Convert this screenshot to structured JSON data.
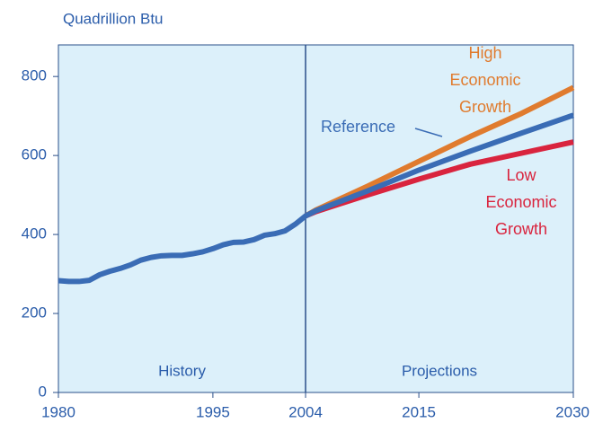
{
  "chart_data": {
    "type": "line",
    "y_label": "Quadrillion Btu",
    "annotations": {
      "history": "History",
      "projections": "Projections"
    },
    "x": [
      1980,
      1981,
      1982,
      1983,
      1984,
      1985,
      1986,
      1987,
      1988,
      1989,
      1990,
      1991,
      1992,
      1993,
      1994,
      1995,
      1996,
      1997,
      1998,
      1999,
      2000,
      2001,
      2002,
      2003,
      2004,
      2005,
      2010,
      2015,
      2020,
      2025,
      2030
    ],
    "series": [
      {
        "name": "Reference",
        "color": "#3a6cb5",
        "values": [
          283,
          281,
          281,
          284,
          298,
          307,
          314,
          323,
          335,
          342,
          346,
          347,
          347,
          351,
          356,
          364,
          374,
          380,
          381,
          387,
          398,
          402,
          409,
          426,
          447,
          460,
          510,
          563,
          611,
          657,
          702
        ]
      },
      {
        "name": "High Economic Growth",
        "color": "#e07b2e",
        "values": [
          null,
          null,
          null,
          null,
          null,
          null,
          null,
          null,
          null,
          null,
          null,
          null,
          null,
          null,
          null,
          null,
          null,
          null,
          null,
          null,
          null,
          null,
          null,
          null,
          447,
          462,
          522,
          585,
          648,
          707,
          772
        ]
      },
      {
        "name": "Low Economic Growth",
        "color": "#d9243e",
        "values": [
          null,
          null,
          null,
          null,
          null,
          null,
          null,
          null,
          null,
          null,
          null,
          null,
          null,
          null,
          null,
          null,
          null,
          null,
          null,
          null,
          null,
          null,
          null,
          null,
          447,
          458,
          500,
          540,
          578,
          606,
          634
        ]
      }
    ],
    "xlim": [
      1980,
      2030
    ],
    "xticks": [
      1980,
      1995,
      2004,
      2015,
      2030
    ],
    "ylim": [
      0,
      880
    ],
    "yticks": [
      0,
      200,
      400,
      600,
      800
    ]
  }
}
